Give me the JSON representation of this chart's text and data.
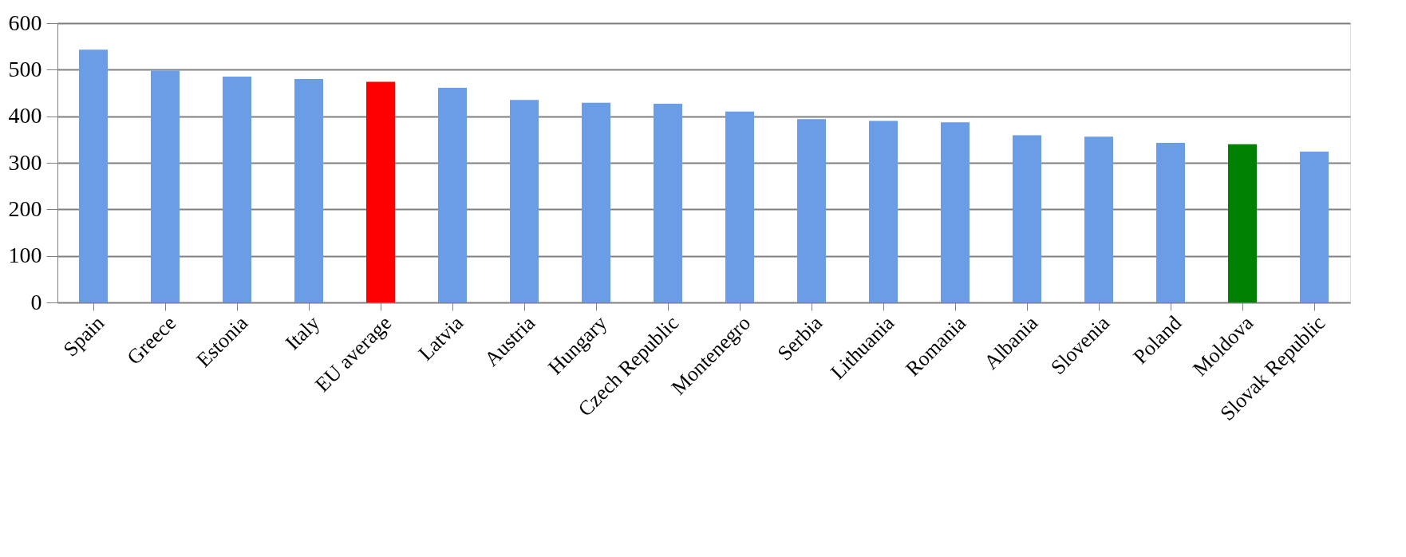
{
  "chart_data": {
    "type": "bar",
    "categories": [
      "Spain",
      "Greece",
      "Estonia",
      "Italy",
      "EU average",
      "Latvia",
      "Austria",
      "Hungary",
      "Czech Republic",
      "Montenegro",
      "Serbia",
      "Lithuania",
      "Romania",
      "Albania",
      "Slovenia",
      "Poland",
      "Moldova",
      "Slovak Republic"
    ],
    "values": [
      543,
      498,
      485,
      480,
      474,
      461,
      435,
      429,
      427,
      410,
      394,
      390,
      387,
      359,
      356,
      343,
      340,
      324
    ],
    "colors": [
      "#6a9de6",
      "#6a9de6",
      "#6a9de6",
      "#6a9de6",
      "#ff0000",
      "#6a9de6",
      "#6a9de6",
      "#6a9de6",
      "#6a9de6",
      "#6a9de6",
      "#6a9de6",
      "#6a9de6",
      "#6a9de6",
      "#6a9de6",
      "#6a9de6",
      "#6a9de6",
      "#008000",
      "#6a9de6"
    ],
    "ylim": [
      0,
      600
    ],
    "yticks": [
      0,
      100,
      200,
      300,
      400,
      500,
      600
    ],
    "grid": "y"
  }
}
